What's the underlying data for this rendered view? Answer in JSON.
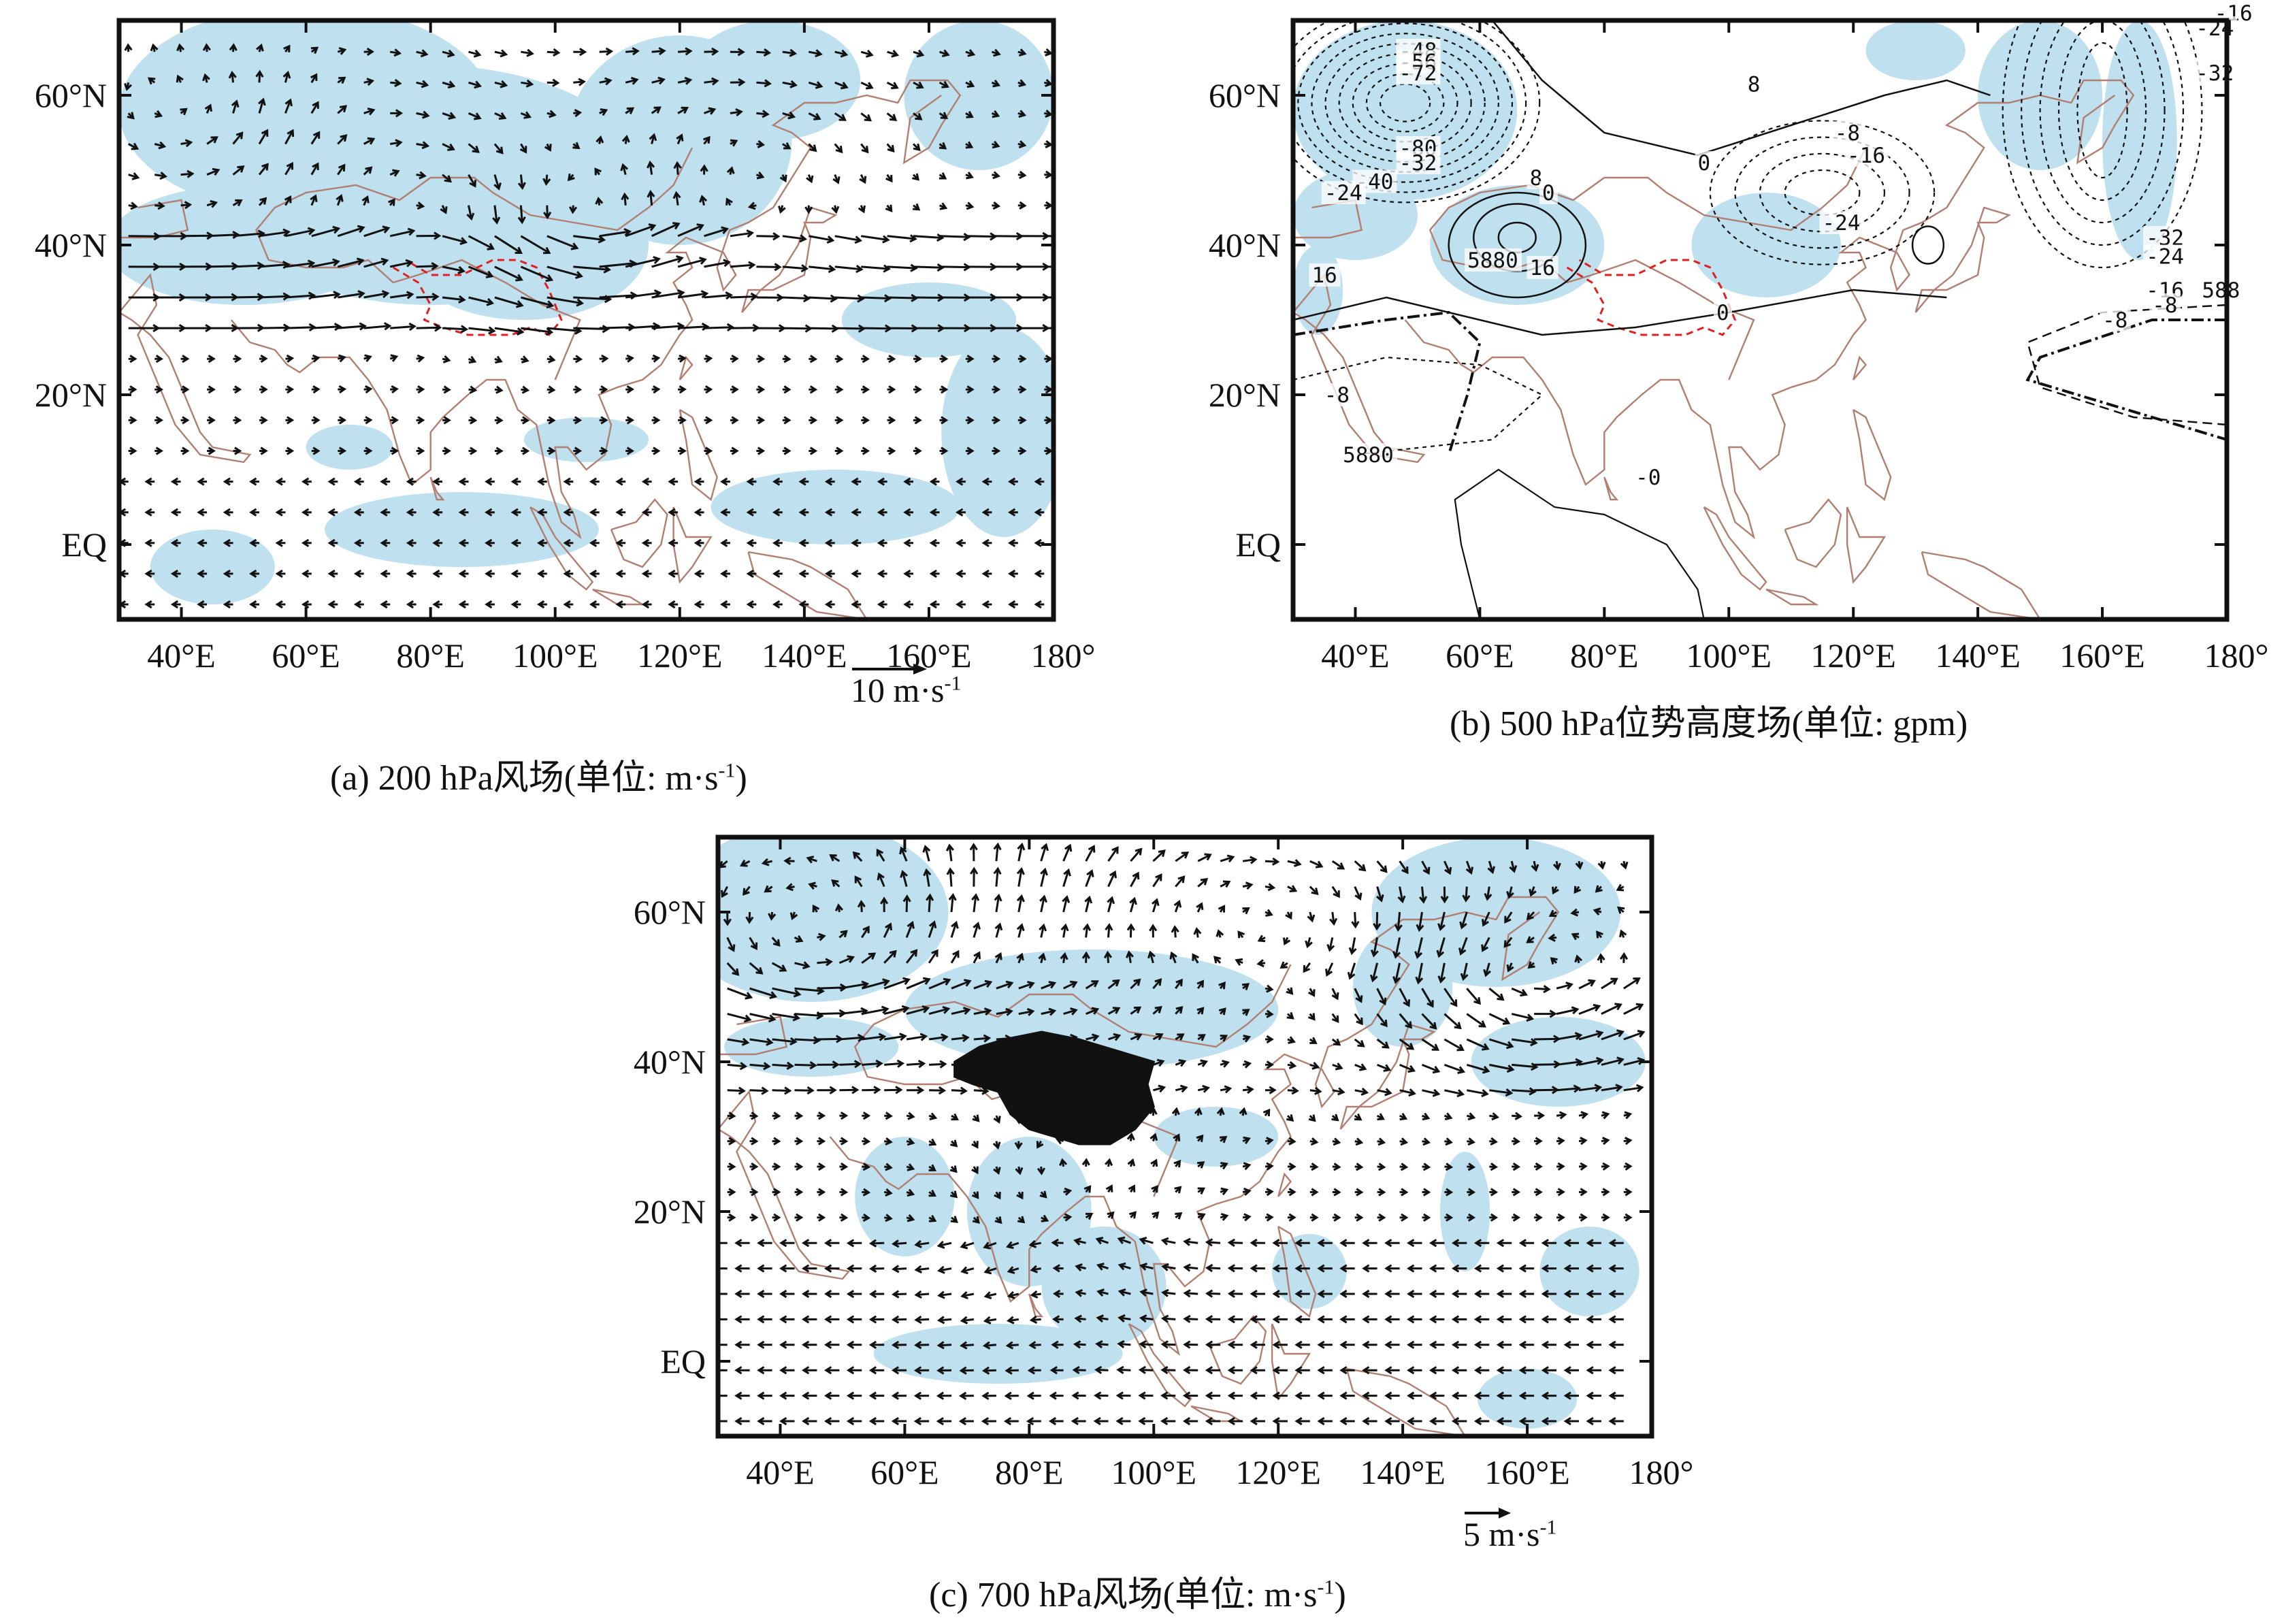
{
  "figure": {
    "panels": [
      {
        "id": "a",
        "caption_text": "(a) 200 hPa风场(单位: m·s",
        "caption_sup": "-1",
        "caption_close": ")",
        "x_ticks": [
          "40°E",
          "60°E",
          "80°E",
          "100°E",
          "120°E",
          "140°E",
          "160°E",
          "180°"
        ],
        "y_ticks": [
          "60°N",
          "40°N",
          "20°N",
          "EQ"
        ],
        "reference_vector_text": "10 m·s",
        "reference_vector_sup": "-1"
      },
      {
        "id": "b",
        "caption_text": "(b) 500 hPa位势高度场(单位: gpm)",
        "x_ticks": [
          "40°E",
          "60°E",
          "80°E",
          "100°E",
          "120°E",
          "140°E",
          "160°E",
          "180°"
        ],
        "y_ticks": [
          "60°N",
          "40°N",
          "20°N",
          "EQ"
        ],
        "contour_labels": [
          "-16",
          "-24",
          "-32",
          "-48",
          "-56",
          "-72",
          "-80",
          "-32",
          "-40",
          "-24",
          "8",
          "0",
          "-8",
          "-16",
          "-24",
          "8",
          "0",
          "16",
          "5880",
          "16",
          "0",
          "-32",
          "-24",
          "-16",
          "-8",
          "588",
          "-8",
          "-8",
          "5880",
          "-0"
        ]
      },
      {
        "id": "c",
        "caption_text": "(c) 700 hPa风场(单位: m·s",
        "caption_sup": "-1",
        "caption_close": ")",
        "x_ticks": [
          "40°E",
          "60°E",
          "80°E",
          "100°E",
          "120°E",
          "140°E",
          "160°E",
          "180°"
        ],
        "y_ticks": [
          "60°N",
          "40°N",
          "20°N",
          "EQ"
        ],
        "reference_vector_text": "5 m·s",
        "reference_vector_sup": "-1"
      }
    ],
    "colors": {
      "significance_shading": "#bfe0ee",
      "coastline": "#b07f72",
      "plateau_boundary": "#e02020",
      "plateau_mask": "#111111",
      "vectors": "#111111",
      "contours": "#111111"
    }
  }
}
